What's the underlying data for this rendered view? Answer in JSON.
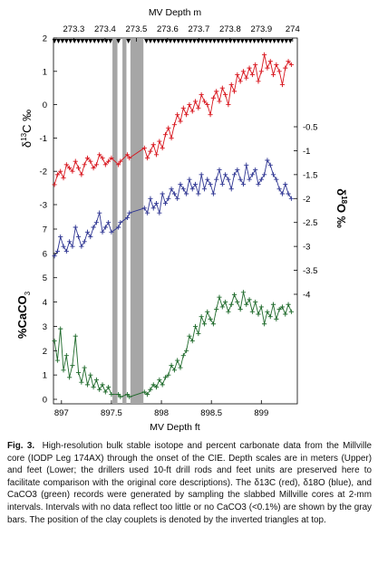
{
  "chart_data": {
    "type": "line",
    "top_axis": {
      "label": "MV Depth m",
      "ticks": [
        273.3,
        273.4,
        273.5,
        273.6,
        273.7,
        273.8,
        273.9,
        274
      ],
      "tick_labels": [
        "273.3",
        "273.4",
        "273.5",
        "273.6",
        "273.7",
        "273.8",
        "273.9",
        "274"
      ],
      "range": [
        273.235,
        274.015
      ]
    },
    "bottom_axis": {
      "label": "MV Depth ft",
      "ticks": [
        897,
        897.5,
        898,
        898.5,
        899
      ],
      "tick_labels": [
        "897",
        "897.5",
        "898",
        "898.5",
        "899"
      ],
      "range": [
        896.92,
        899.36
      ]
    },
    "left_axis": {
      "d13c_label_main": "δ",
      "d13c_label_sup": "13",
      "d13c_label_end": "C ‰",
      "d13c_ticks": [
        2,
        1,
        0,
        -1,
        -2,
        -3
      ],
      "d13c_tick_labels": [
        "2",
        "1",
        "0",
        "-1",
        "-2",
        "-3"
      ],
      "d13c_range": [
        -3,
        2
      ],
      "caco3_label_main": "%CaCO",
      "caco3_label_sub": "3",
      "caco3_ticks": [
        7,
        6,
        5,
        4,
        3,
        2,
        1,
        0
      ],
      "caco3_tick_labels": [
        "7",
        "6",
        "5",
        "4",
        "3",
        "2",
        "1",
        "0"
      ],
      "caco3_range": [
        0,
        7
      ]
    },
    "right_axis": {
      "d18o_label_main": "δ",
      "d18o_label_sup": "18",
      "d18o_label_end": "O ‰",
      "d18o_ticks": [
        -0.5,
        -1,
        -1.5,
        -2,
        -2.5,
        -3,
        -3.5,
        -4
      ],
      "d18o_tick_labels": [
        "-0.5",
        "-1",
        "-1.5",
        "-2",
        "-2.5",
        "-3",
        "-3.5",
        "-4"
      ],
      "d18o_range": [
        -0.5,
        -4
      ]
    },
    "gaps_ft": [
      [
        897.51,
        897.56
      ],
      [
        897.61,
        897.65
      ],
      [
        897.69,
        897.82
      ]
    ],
    "clay_couplets_ft": [
      896.93,
      896.97,
      897.01,
      897.05,
      897.09,
      897.13,
      897.17,
      897.21,
      897.25,
      897.29,
      897.33,
      897.37,
      897.41,
      897.45,
      897.49,
      897.57,
      897.67,
      897.85,
      897.89,
      897.93,
      897.97,
      898.01,
      898.05,
      898.09,
      898.13,
      898.17,
      898.21,
      898.25,
      898.29,
      898.33,
      898.37,
      898.41,
      898.45,
      898.49,
      898.53,
      898.57,
      898.61,
      898.65,
      898.69,
      898.73,
      898.77,
      898.81,
      898.85,
      898.89,
      898.93,
      898.97,
      899.01,
      899.05,
      899.09,
      899.13,
      899.17,
      899.21,
      899.25,
      899.29
    ],
    "series": [
      {
        "name": "δ13C",
        "color": "#d8141c",
        "x": [
          896.93,
          896.96,
          896.99,
          897.02,
          897.05,
          897.08,
          897.11,
          897.14,
          897.17,
          897.2,
          897.23,
          897.26,
          897.29,
          897.32,
          897.35,
          897.38,
          897.41,
          897.44,
          897.47,
          897.5,
          897.57,
          897.59,
          897.66,
          897.68,
          897.83,
          897.86,
          897.89,
          897.92,
          897.95,
          897.98,
          898.01,
          898.04,
          898.07,
          898.1,
          898.13,
          898.16,
          898.19,
          898.22,
          898.25,
          898.28,
          898.31,
          898.34,
          898.37,
          898.4,
          898.43,
          898.46,
          898.49,
          898.52,
          898.55,
          898.58,
          898.61,
          898.64,
          898.67,
          898.7,
          898.73,
          898.76,
          898.79,
          898.82,
          898.85,
          898.88,
          898.91,
          898.94,
          898.97,
          899.0,
          899.03,
          899.06,
          899.09,
          899.12,
          899.15,
          899.18,
          899.21,
          899.24,
          899.27,
          899.3
        ],
        "y": [
          -2.4,
          -2.1,
          -2.0,
          -2.2,
          -1.8,
          -1.9,
          -2.0,
          -1.7,
          -1.9,
          -2.1,
          -1.8,
          -1.6,
          -1.7,
          -1.9,
          -1.8,
          -1.5,
          -1.6,
          -1.8,
          -1.7,
          -1.6,
          -1.8,
          -1.7,
          -1.5,
          -1.6,
          -1.3,
          -1.6,
          -1.4,
          -1.2,
          -1.5,
          -1.1,
          -1.3,
          -0.9,
          -0.7,
          -1.0,
          -0.6,
          -0.3,
          -0.5,
          -0.1,
          -0.3,
          0.0,
          -0.2,
          0.1,
          -0.1,
          0.3,
          0.1,
          0.0,
          -0.3,
          0.2,
          0.4,
          0.1,
          0.5,
          0.3,
          0.0,
          0.6,
          0.4,
          0.9,
          0.7,
          1.0,
          0.8,
          1.1,
          0.9,
          1.2,
          0.7,
          1.0,
          1.5,
          1.1,
          1.3,
          0.9,
          1.2,
          1.0,
          0.6,
          1.1,
          1.3,
          1.2
        ]
      },
      {
        "name": "δ18O",
        "color": "#2e3592",
        "x": [
          896.93,
          896.96,
          896.99,
          897.02,
          897.05,
          897.08,
          897.11,
          897.14,
          897.17,
          897.2,
          897.23,
          897.26,
          897.29,
          897.32,
          897.35,
          897.38,
          897.41,
          897.44,
          897.47,
          897.5,
          897.57,
          897.59,
          897.66,
          897.68,
          897.83,
          897.86,
          897.89,
          897.92,
          897.95,
          897.98,
          898.01,
          898.04,
          898.07,
          898.1,
          898.13,
          898.16,
          898.19,
          898.22,
          898.25,
          898.28,
          898.31,
          898.34,
          898.37,
          898.4,
          898.43,
          898.46,
          898.49,
          898.52,
          898.55,
          898.58,
          898.61,
          898.64,
          898.67,
          898.7,
          898.73,
          898.76,
          898.79,
          898.82,
          898.85,
          898.88,
          898.91,
          898.94,
          898.97,
          899.0,
          899.03,
          899.06,
          899.09,
          899.12,
          899.15,
          899.18,
          899.21,
          899.24,
          899.27,
          899.3
        ],
        "y": [
          -3.2,
          -3.1,
          -2.8,
          -3.0,
          -3.1,
          -2.9,
          -3.0,
          -2.6,
          -2.8,
          -3.0,
          -2.9,
          -2.7,
          -2.8,
          -2.6,
          -2.5,
          -2.3,
          -2.7,
          -2.6,
          -2.5,
          -2.7,
          -2.6,
          -2.5,
          -2.4,
          -2.3,
          -2.2,
          -2.3,
          -2.0,
          -2.2,
          -2.1,
          -2.3,
          -1.9,
          -2.1,
          -2.0,
          -1.8,
          -1.9,
          -2.0,
          -1.7,
          -1.8,
          -1.9,
          -1.6,
          -1.8,
          -1.7,
          -1.9,
          -1.5,
          -1.8,
          -1.6,
          -1.7,
          -1.9,
          -1.6,
          -1.4,
          -1.7,
          -1.5,
          -1.6,
          -1.8,
          -1.5,
          -1.4,
          -1.6,
          -1.7,
          -1.3,
          -1.6,
          -1.5,
          -1.4,
          -1.7,
          -1.6,
          -1.5,
          -1.2,
          -1.3,
          -1.5,
          -1.6,
          -1.8,
          -1.9,
          -1.7,
          -1.9,
          -2.0
        ]
      },
      {
        "name": "%CaCO3",
        "color": "#1f6a2b",
        "x": [
          896.93,
          896.96,
          896.99,
          897.02,
          897.05,
          897.08,
          897.11,
          897.14,
          897.17,
          897.2,
          897.23,
          897.26,
          897.29,
          897.32,
          897.35,
          897.38,
          897.41,
          897.44,
          897.47,
          897.5,
          897.57,
          897.59,
          897.66,
          897.68,
          897.83,
          897.86,
          897.89,
          897.92,
          897.95,
          897.98,
          898.01,
          898.04,
          898.07,
          898.1,
          898.13,
          898.16,
          898.19,
          898.22,
          898.25,
          898.28,
          898.31,
          898.34,
          898.37,
          898.4,
          898.43,
          898.46,
          898.49,
          898.52,
          898.55,
          898.58,
          898.61,
          898.64,
          898.67,
          898.7,
          898.73,
          898.76,
          898.79,
          898.82,
          898.85,
          898.88,
          898.91,
          898.94,
          898.97,
          899.0,
          899.03,
          899.06,
          899.09,
          899.12,
          899.15,
          899.18,
          899.21,
          899.24,
          899.27,
          899.3
        ],
        "y": [
          2.4,
          1.6,
          2.9,
          1.2,
          1.8,
          0.9,
          1.4,
          2.6,
          1.1,
          0.7,
          1.3,
          0.6,
          1.0,
          0.5,
          0.8,
          0.4,
          0.6,
          0.3,
          0.5,
          0.2,
          0.2,
          0.1,
          0.2,
          0.1,
          0.3,
          0.2,
          0.4,
          0.6,
          0.5,
          0.8,
          0.6,
          0.9,
          1.0,
          1.4,
          1.2,
          1.6,
          1.3,
          1.8,
          2.0,
          2.6,
          2.4,
          3.0,
          2.7,
          3.4,
          3.1,
          3.6,
          3.3,
          3.1,
          3.7,
          4.2,
          3.8,
          4.0,
          3.6,
          3.9,
          4.3,
          4.0,
          3.7,
          4.4,
          3.9,
          4.1,
          3.6,
          4.0,
          3.5,
          3.8,
          3.1,
          3.6,
          3.4,
          3.9,
          3.3,
          3.7,
          3.8,
          3.5,
          3.9,
          3.6
        ]
      }
    ]
  },
  "caption": {
    "fig_label": "Fig. 3.",
    "text": "High-resolution bulk stable isotope and percent carbonate data from the Millville core (IODP Leg 174AX) through the onset of the CIE. Depth scales are in meters (Upper) and feet (Lower; the drillers used 10-ft drill rods and feet units are preserved here to facilitate comparison with the original core descriptions). The δ13C (red), δ18O (blue), and CaCO3 (green) records were generated by sampling the slabbed Millville cores at 2-mm intervals. Intervals with no data reflect too little or no CaCO3 (<0.1%) are shown by the gray bars. The position of the clay couplets is denoted by the inverted triangles at top."
  }
}
